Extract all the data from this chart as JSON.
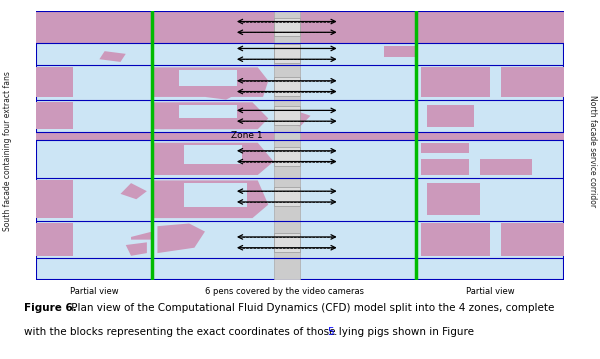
{
  "fig_width": 6.0,
  "fig_height": 3.59,
  "dpi": 100,
  "bg_color": "#cce5f5",
  "border_color": "#0000bb",
  "green_color": "#00bb00",
  "pink_color": "#cc99bb",
  "caption_bold": "Figure 6.",
  "caption_rest": " Plan view of the Computational Fluid Dynamics (CFD) model split into the 4 zones, complete",
  "caption_line2": "with the blocks representing the exact coordinates of those lying pigs shown in Figure ",
  "caption_link": "5",
  "left_label": "South facade containing four extract fans",
  "right_label": "North facade service corridor",
  "bottom_left": "Partial view",
  "bottom_center": "6 pens covered by the video cameras",
  "bottom_right": "Partial view",
  "zone1": "Zone 1"
}
